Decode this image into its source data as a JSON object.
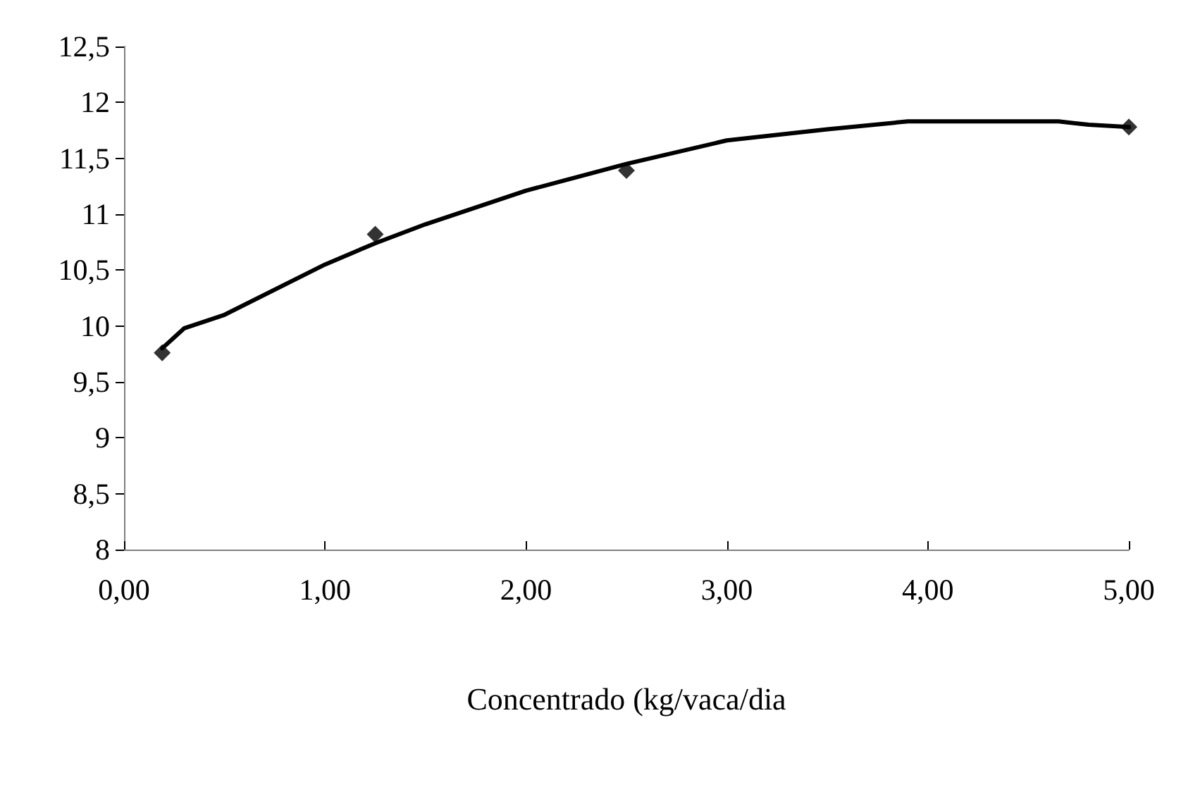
{
  "chart_data": {
    "type": "scatter",
    "xlabel": "Concentrado (kg/vaca/dia",
    "xlim": [
      0,
      5
    ],
    "xticks": [
      {
        "value": 0,
        "label": "0,00"
      },
      {
        "value": 1,
        "label": "1,00"
      },
      {
        "value": 2,
        "label": "2,00"
      },
      {
        "value": 3,
        "label": "3,00"
      },
      {
        "value": 4,
        "label": "4,00"
      },
      {
        "value": 5,
        "label": "5,00"
      }
    ],
    "ylim": [
      8,
      12.5
    ],
    "yticks": [
      {
        "value": 8,
        "label": "8"
      },
      {
        "value": 8.5,
        "label": "8,5"
      },
      {
        "value": 9,
        "label": "9"
      },
      {
        "value": 9.5,
        "label": "9,5"
      },
      {
        "value": 10,
        "label": "10"
      },
      {
        "value": 10.5,
        "label": "10,5"
      },
      {
        "value": 11,
        "label": "11"
      },
      {
        "value": 11.5,
        "label": "11,5"
      },
      {
        "value": 12,
        "label": "12"
      },
      {
        "value": 12.5,
        "label": "12,5"
      }
    ],
    "grid": false,
    "series": [
      {
        "color": "#000000",
        "marker": "diamond",
        "x": [
          0.19,
          1.25,
          2.5,
          5
        ],
        "values": [
          9.76,
          10.82,
          11.39,
          11.78
        ]
      },
      {
        "type": "line",
        "color": "#000000",
        "marker": "none",
        "line_style": "solid",
        "x": [
          0.19,
          0.3,
          0.5,
          1.0,
          1.25,
          1.5,
          2.0,
          2.5,
          3.0,
          3.5,
          3.9,
          4.65,
          4.8,
          5.0
        ],
        "values": [
          9.8,
          9.98,
          10.1,
          10.55,
          10.74,
          10.91,
          11.21,
          11.45,
          11.66,
          11.76,
          11.83,
          11.83,
          11.8,
          11.78
        ]
      }
    ]
  }
}
